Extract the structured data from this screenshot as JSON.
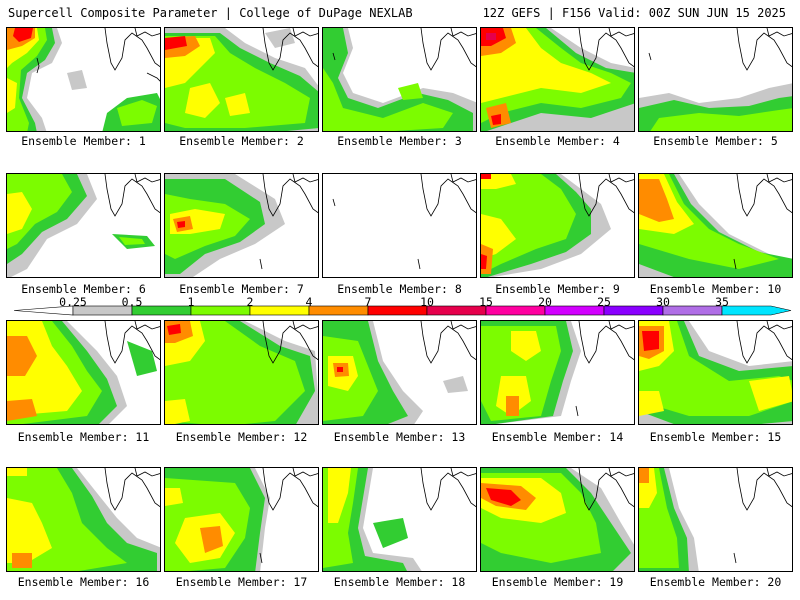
{
  "header": {
    "title": "Supercell Composite Parameter | College of DuPage NEXLAB",
    "run_info": "12Z GEFS | F156 Valid: 00Z SUN JUN 15 2025"
  },
  "colorbar": {
    "thresholds": [
      "0.25",
      "0.5",
      "1",
      "2",
      "4",
      "7",
      "10",
      "15",
      "20",
      "25",
      "30",
      "35"
    ],
    "colors": [
      "#c8c8c8",
      "#32cd32",
      "#7cfc00",
      "#ffff00",
      "#ff8c00",
      "#ff0000",
      "#e6004c",
      "#ff00a0",
      "#d200ff",
      "#8a00ff",
      "#b06ee6",
      "#00e5ff"
    ]
  },
  "members": [
    {
      "label": "Ensemble Member: 1"
    },
    {
      "label": "Ensemble Member: 2"
    },
    {
      "label": "Ensemble Member: 3"
    },
    {
      "label": "Ensemble Member: 4"
    },
    {
      "label": "Ensemble Member: 5"
    },
    {
      "label": "Ensemble Member: 6"
    },
    {
      "label": "Ensemble Member: 7"
    },
    {
      "label": "Ensemble Member: 8"
    },
    {
      "label": "Ensemble Member: 9"
    },
    {
      "label": "Ensemble Member: 10"
    },
    {
      "label": "Ensemble Member: 11"
    },
    {
      "label": "Ensemble Member: 12"
    },
    {
      "label": "Ensemble Member: 13"
    },
    {
      "label": "Ensemble Member: 14"
    },
    {
      "label": "Ensemble Member: 15"
    },
    {
      "label": "Ensemble Member: 16"
    },
    {
      "label": "Ensemble Member: 17"
    },
    {
      "label": "Ensemble Member: 18"
    },
    {
      "label": "Ensemble Member: 19"
    },
    {
      "label": "Ensemble Member: 20"
    }
  ]
}
